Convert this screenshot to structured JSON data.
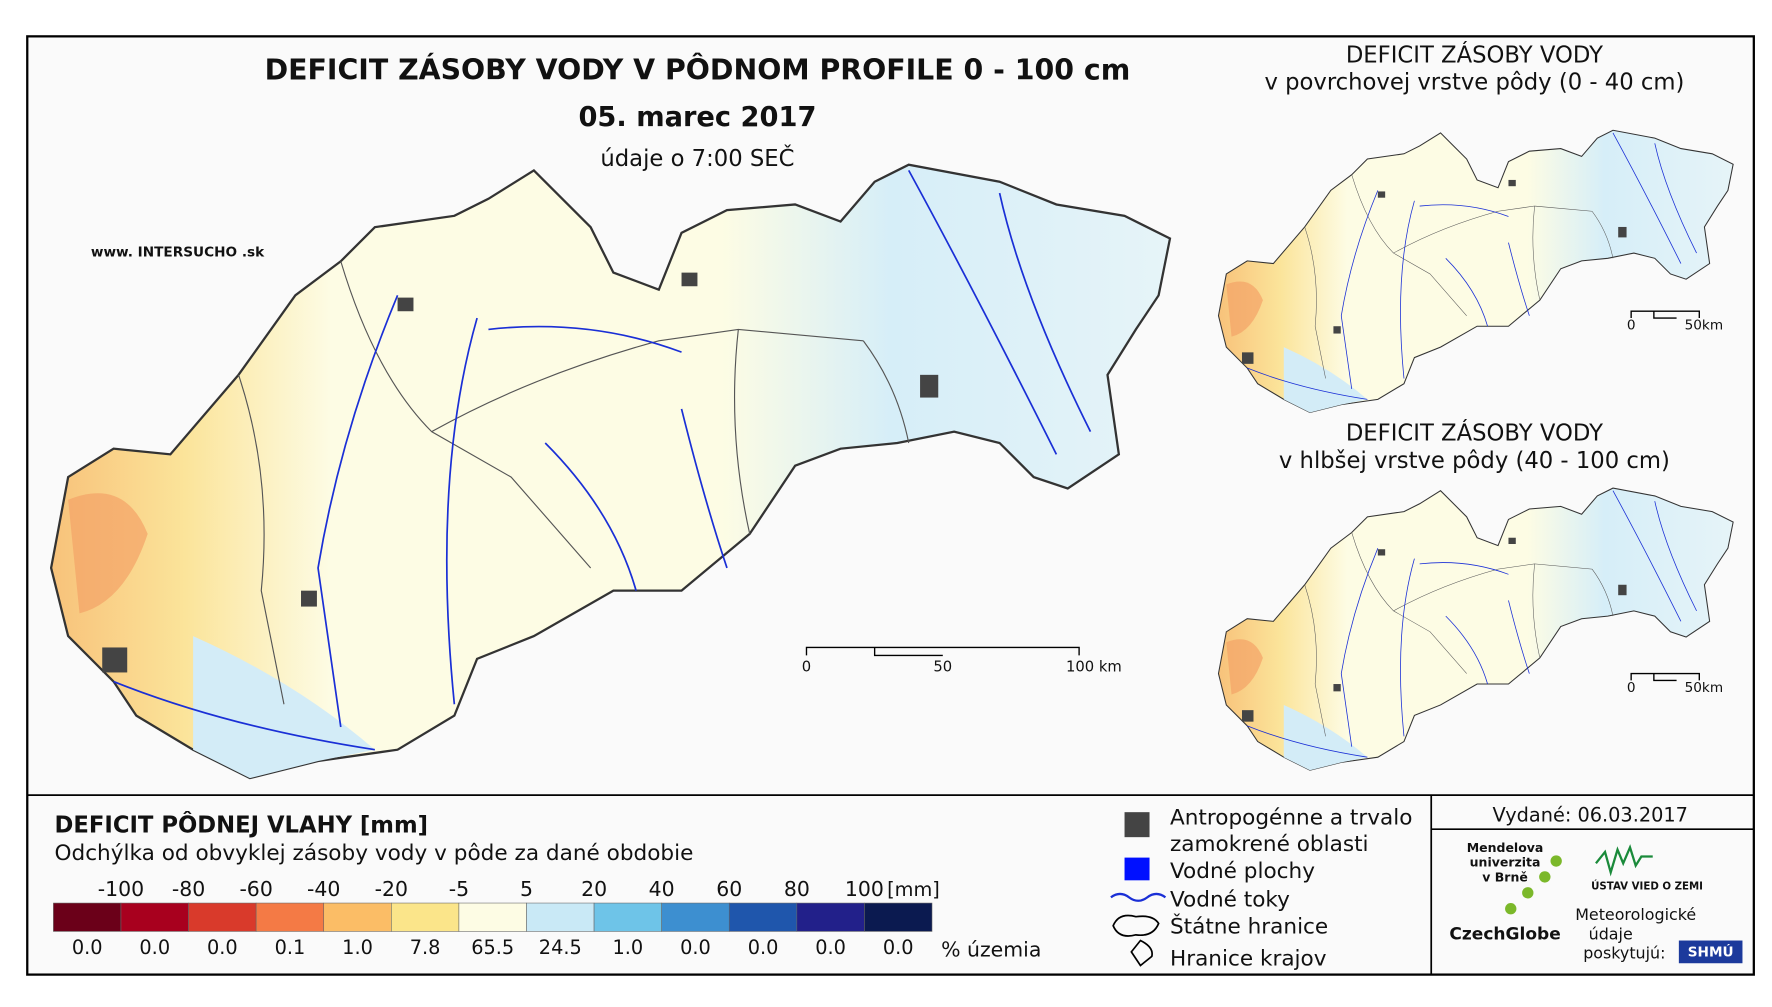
{
  "header": {
    "title": "DEFICIT ZÁSOBY VODY V PÔDNOM PROFILE 0 - 100 cm",
    "date": "05. marec 2017",
    "note": "údaje o 7:00 SEČ",
    "website": "www. INTERSUCHO .sk"
  },
  "main_map": {
    "scale_labels": [
      "0",
      "50",
      "100 km"
    ]
  },
  "small_maps": [
    {
      "title": "DEFICIT ZÁSOBY VODY",
      "subtitle": "v povrchovej vrstve pôdy (0 - 40 cm)",
      "scale_labels": [
        "0",
        "50km"
      ]
    },
    {
      "title": "DEFICIT ZÁSOBY VODY",
      "subtitle": "v hlbšej vrstve pôdy (40 - 100 cm)",
      "scale_labels": [
        "0",
        "50km"
      ]
    }
  ],
  "legend": {
    "title": "DEFICIT PÔDNEJ VLAHY [mm]",
    "subtitle": "Odchýlka od obvyklej zásoby vody v pôde za dané obdobie",
    "bounds": [
      "-100",
      "-80",
      "-60",
      "-40",
      "-20",
      "-5",
      "5",
      "20",
      "40",
      "60",
      "80",
      "100"
    ],
    "unit": "[mm]",
    "classes": [
      {
        "color": "#6b0019",
        "share": "0.0"
      },
      {
        "color": "#a8001e",
        "share": "0.0"
      },
      {
        "color": "#d93a2b",
        "share": "0.0"
      },
      {
        "color": "#f47a45",
        "share": "0.1"
      },
      {
        "color": "#fbbd66",
        "share": "1.0"
      },
      {
        "color": "#fbe58a",
        "share": "7.8"
      },
      {
        "color": "#fdfce4",
        "share": "65.5"
      },
      {
        "color": "#c9e9f6",
        "share": "24.5"
      },
      {
        "color": "#6ec4e8",
        "share": "1.0"
      },
      {
        "color": "#3d8fd0",
        "share": "0.0"
      },
      {
        "color": "#1f56ac",
        "share": "0.0"
      },
      {
        "color": "#22208a",
        "share": "0.0"
      },
      {
        "color": "#0b1a50",
        "share": "0.0"
      }
    ],
    "share_unit": "% územia",
    "symbols": [
      "Antropogénne a trvalo zamokrené oblasti",
      "Vodné plochy",
      "Vodné toky",
      "Štátne hranice",
      "Hranice krajov"
    ]
  },
  "footer": {
    "issued": "Vydané: 06.03.2017",
    "mendel": [
      "Mendelova",
      "univerzita",
      "v Brně"
    ],
    "czechglobe": "CzechGlobe",
    "ustav": "ÚSTAV VIED O ZEMI",
    "provider": [
      "Meteorologické",
      "údaje",
      "poskytujú:"
    ],
    "shmu": "SHMÚ"
  }
}
